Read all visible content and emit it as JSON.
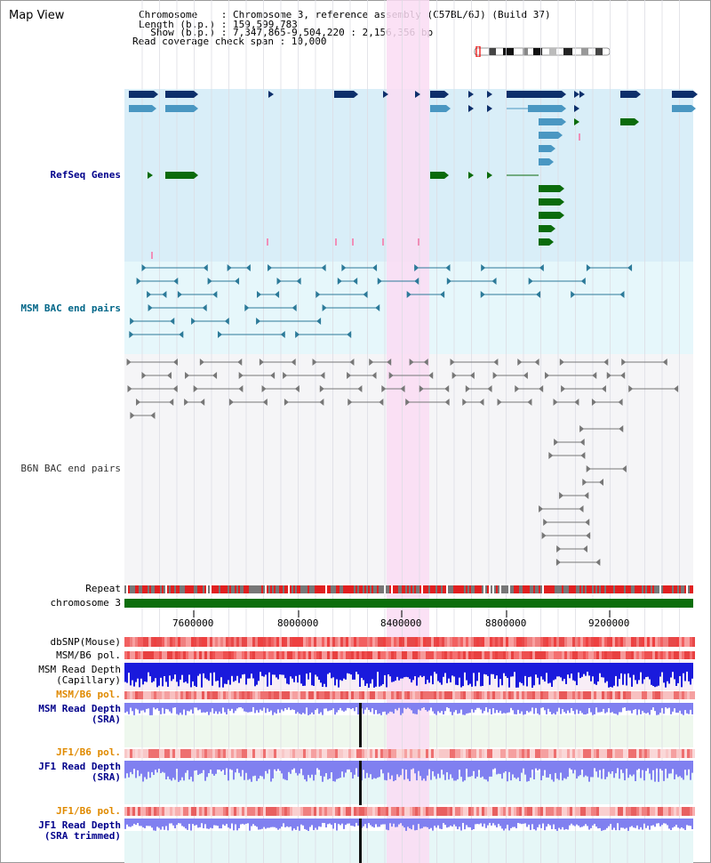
{
  "window": {
    "title": "Map View"
  },
  "header": {
    "line1": "Chromosome    : Chromosome 3, reference assembly (C57BL/6J) (Build 37)",
    "line2": "Length (b.p.) : 159,599,783",
    "line3": "  Show (b.p.) : 7,347,865-9,504,220 : 2,156,356 bp",
    "line4": "Read coverage check span : 10,000"
  },
  "tracks": {
    "refseq": "RefSeq Genes",
    "msm_bac": "MSM BAC end pairs",
    "b6n_bac": "B6N BAC end pairs",
    "repeat": "Repeat",
    "chromosome": "chromosome 3",
    "dbsnp": "dbSNP(Mouse)",
    "msm_pol1": "MSM/B6 pol.",
    "msm_depth_cap_1": "MSM Read Depth",
    "msm_depth_cap_2": "(Capillary)",
    "msm_pol2": "MSM/B6 pol.",
    "msm_depth_sra_1": "MSM Read Depth",
    "msm_depth_sra_2": "(SRA)",
    "jf1_pol1": "JF1/B6 pol.",
    "jf1_depth_1": "JF1 Read Depth",
    "jf1_depth_2": "(SRA)",
    "jf1_pol2": "JF1/B6 pol.",
    "jf1_trim_1": "JF1 Read Depth",
    "jf1_trim_2": "(SRA trimmed)"
  },
  "axis": {
    "ticks": [
      "7600000",
      "8000000",
      "8400000",
      "8800000",
      "9200000"
    ]
  },
  "colors": {
    "highlight": "#fadcf3",
    "refseq_bg": "#d9eef8",
    "bac_bg": "#e6f7fb",
    "gene_dark": "#0d2f6b",
    "gene_light": "#4a97c2",
    "gene_green": "#0b6b0b",
    "chromosome_bar": "#0b6e0b",
    "depth_blue": "#1a1adc",
    "depth_light": "#8080f0"
  }
}
